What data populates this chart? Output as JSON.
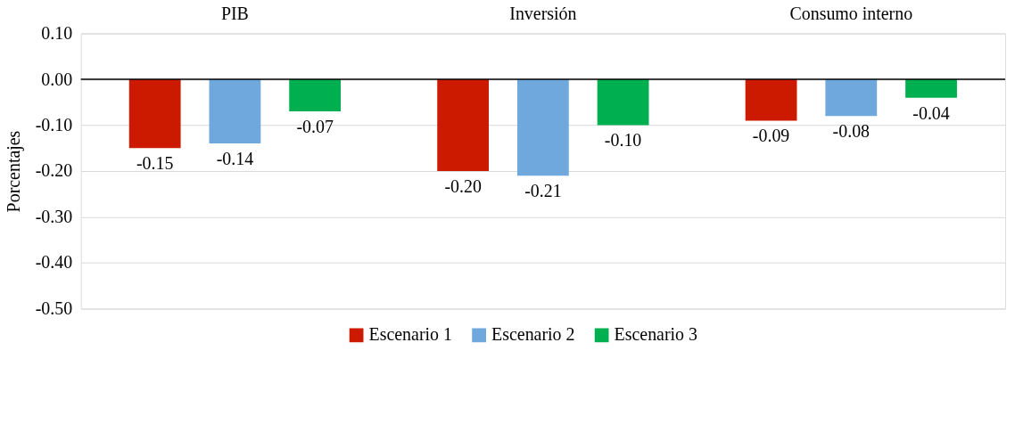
{
  "chart_data": {
    "type": "bar",
    "ylabel": "Porcentajes",
    "categories": [
      "PIB",
      "Inversión",
      "Consumo interno"
    ],
    "series": [
      {
        "name": "Escenario 1",
        "color": "#cc1a00",
        "values": [
          -0.15,
          -0.2,
          -0.09
        ],
        "value_labels": [
          "-0.15",
          "-0.20",
          "-0.09"
        ]
      },
      {
        "name": "Escenario 2",
        "color": "#6fa8dc",
        "values": [
          -0.14,
          -0.21,
          -0.08
        ],
        "value_labels": [
          "-0.14",
          "-0.21",
          "-0.08"
        ]
      },
      {
        "name": "Escenario 3",
        "color": "#00b050",
        "values": [
          -0.07,
          -0.1,
          -0.04
        ],
        "value_labels": [
          "-0.07",
          "-0.10",
          "-0.04"
        ]
      }
    ],
    "ylim": [
      -0.5,
      0.1
    ],
    "yticks": [
      {
        "value": 0.1,
        "label": "0.10"
      },
      {
        "value": 0,
        "label": "0.00"
      },
      {
        "value": -0.1,
        "label": "-0.10"
      },
      {
        "value": -0.2,
        "label": "-0.20"
      },
      {
        "value": -0.3,
        "label": "-0.30"
      },
      {
        "value": -0.4,
        "label": "-0.40"
      },
      {
        "value": -0.5,
        "label": "-0.50"
      }
    ],
    "grid": "y",
    "legend": "bottom"
  }
}
